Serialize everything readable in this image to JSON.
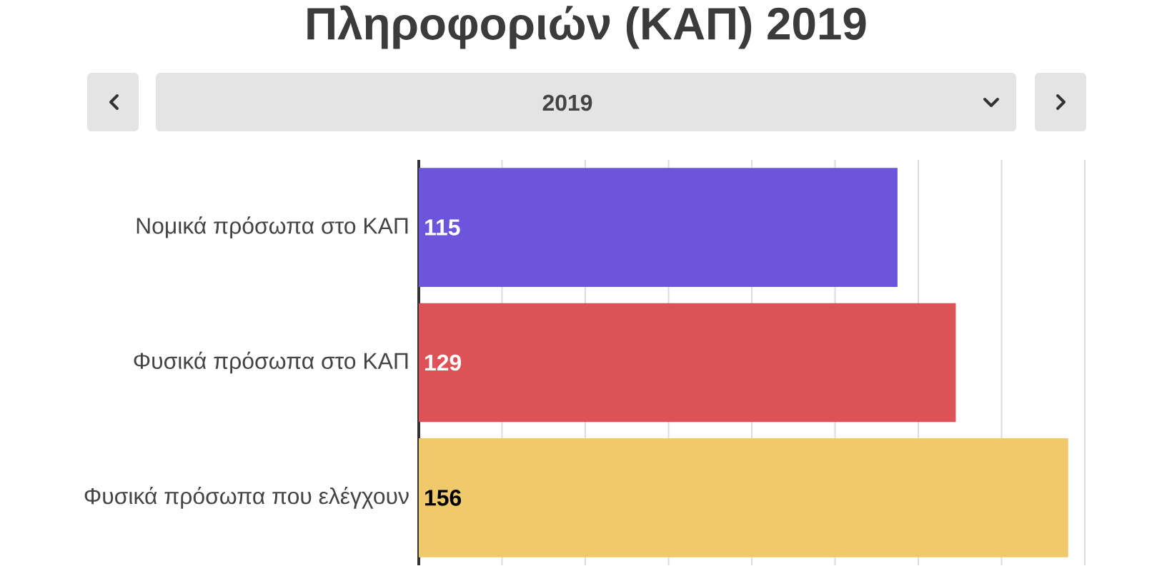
{
  "chart_data": {
    "type": "bar",
    "orientation": "horizontal",
    "title": "Πληροφοριών (ΚΑΠ) 2019",
    "subtitle": "2019",
    "categories": [
      "Νομικά πρόσωπα στο ΚΑΠ",
      "Φυσικά πρόσωπα στο ΚΑΠ",
      "Φυσικά πρόσωπα που ελέγχουν"
    ],
    "values": [
      115,
      129,
      156
    ],
    "colors": [
      "#6c55dc",
      "#dc5256",
      "#f0ca6a"
    ],
    "xlim": [
      0,
      160
    ],
    "xticks": [
      {
        "value": 0,
        "label": null
      },
      {
        "value": 20,
        "label": null
      },
      {
        "value": 40,
        "label": null
      },
      {
        "value": 60,
        "label": null
      },
      {
        "value": 80,
        "label": null
      },
      {
        "value": 100,
        "label": null
      },
      {
        "value": 120,
        "label": null
      },
      {
        "value": 140,
        "label": null
      },
      {
        "value": 160,
        "label": null
      }
    ],
    "grid": "x",
    "tick_labels": "y",
    "data_labels": true
  }
}
